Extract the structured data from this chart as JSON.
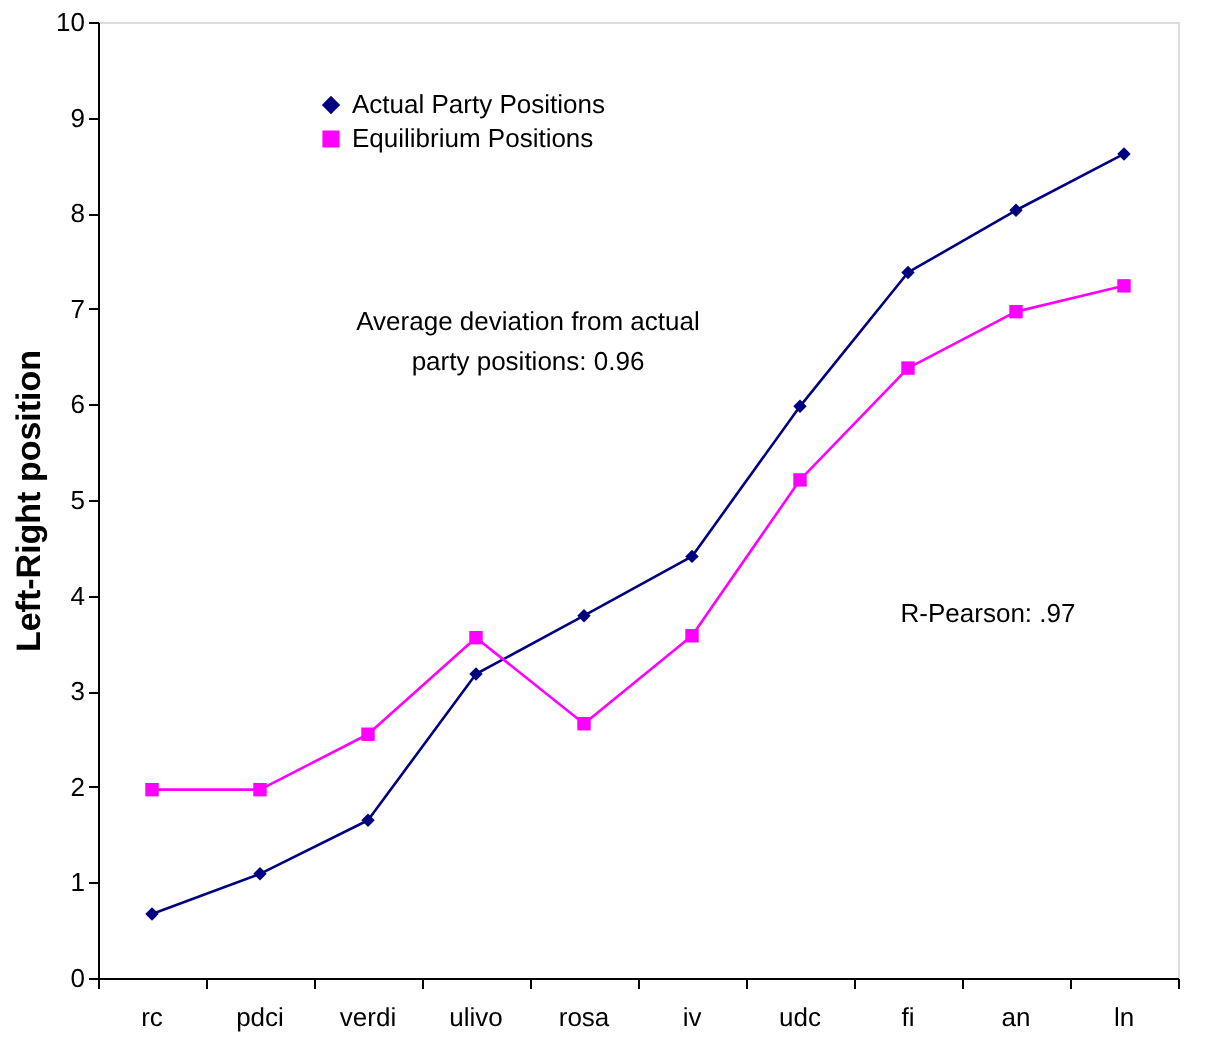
{
  "chart_data": {
    "type": "line",
    "ylabel": "Left-Right position",
    "categories": [
      "rc",
      "pdci",
      "verdi",
      "ulivo",
      "rosa",
      "iv",
      "udc",
      "fi",
      "an",
      "ln"
    ],
    "series": [
      {
        "name": "Actual Party Positions",
        "color": "#000080",
        "marker": "diamond",
        "values": [
          0.67,
          1.09,
          1.65,
          3.18,
          3.79,
          4.41,
          5.98,
          7.38,
          8.03,
          8.62
        ]
      },
      {
        "name": "Equilibrium Positions",
        "color": "#ff00ff",
        "marker": "square",
        "values": [
          1.97,
          1.97,
          2.55,
          3.56,
          2.66,
          3.58,
          5.21,
          6.38,
          6.97,
          7.24
        ]
      }
    ],
    "ylim": [
      0,
      10
    ],
    "yticks": [
      0,
      1,
      2,
      3,
      4,
      5,
      6,
      7,
      8,
      9,
      10
    ],
    "grid": false,
    "legend": "top left",
    "line_style": "solid",
    "annotations": [
      "Average deviation from actual\nparty positions: 0.96",
      "R-Pearson: .97"
    ]
  }
}
